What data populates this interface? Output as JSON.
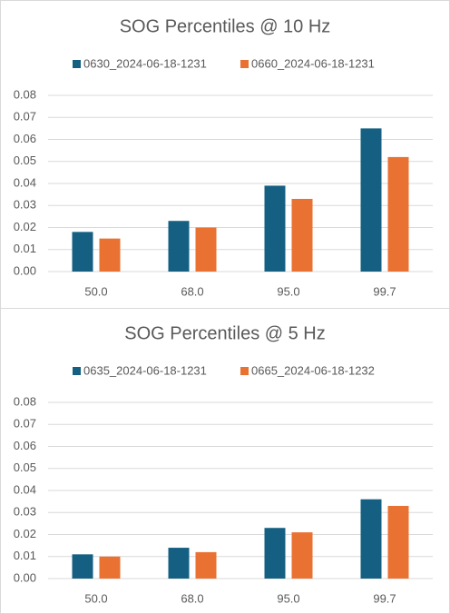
{
  "chart_data": [
    {
      "type": "bar",
      "title": "SOG Percentiles @ 10 Hz",
      "categories": [
        "50.0",
        "68.0",
        "95.0",
        "99.7"
      ],
      "series": [
        {
          "name": "0630_2024-06-18-1231",
          "color": "#156082",
          "values": [
            0.018,
            0.023,
            0.039,
            0.065
          ]
        },
        {
          "name": "0660_2024-06-18-1231",
          "color": "#e97132",
          "values": [
            0.015,
            0.02,
            0.033,
            0.052
          ]
        }
      ],
      "ylim": [
        0,
        0.08
      ],
      "yticks": [
        {
          "value": 0,
          "label": "0.00"
        },
        {
          "value": 0.01,
          "label": "0.01"
        },
        {
          "value": 0.02,
          "label": "0.02"
        },
        {
          "value": 0.03,
          "label": "0.03"
        },
        {
          "value": 0.04,
          "label": "0.04"
        },
        {
          "value": 0.05,
          "label": "0.05"
        },
        {
          "value": 0.06,
          "label": "0.06"
        },
        {
          "value": 0.07,
          "label": "0.07"
        },
        {
          "value": 0.08,
          "label": "0.08"
        }
      ],
      "grid": true,
      "legend": "top"
    },
    {
      "type": "bar",
      "title": "SOG Percentiles @ 5 Hz",
      "categories": [
        "50.0",
        "68.0",
        "95.0",
        "99.7"
      ],
      "series": [
        {
          "name": "0635_2024-06-18-1231",
          "color": "#156082",
          "values": [
            0.011,
            0.014,
            0.023,
            0.036
          ]
        },
        {
          "name": "0665_2024-06-18-1232",
          "color": "#e97132",
          "values": [
            0.01,
            0.012,
            0.021,
            0.033
          ]
        }
      ],
      "ylim": [
        0,
        0.08
      ],
      "yticks": [
        {
          "value": 0,
          "label": "0.00"
        },
        {
          "value": 0.01,
          "label": "0.01"
        },
        {
          "value": 0.02,
          "label": "0.02"
        },
        {
          "value": 0.03,
          "label": "0.03"
        },
        {
          "value": 0.04,
          "label": "0.04"
        },
        {
          "value": 0.05,
          "label": "0.05"
        },
        {
          "value": 0.06,
          "label": "0.06"
        },
        {
          "value": 0.07,
          "label": "0.07"
        },
        {
          "value": 0.08,
          "label": "0.08"
        }
      ],
      "grid": true,
      "legend": "top"
    }
  ]
}
